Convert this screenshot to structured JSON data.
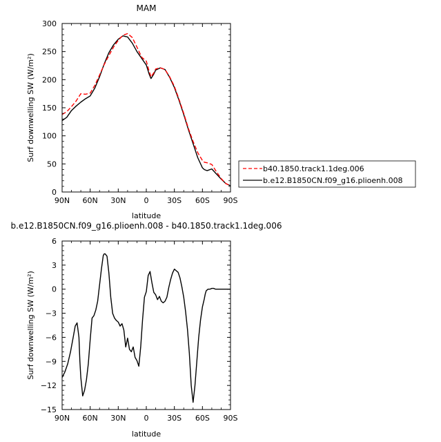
{
  "chart_data": [
    {
      "type": "line",
      "title": "MAM",
      "xlabel": "latitude",
      "ylabel": "Surf downwelling SW (W/m²)",
      "x_tick_labels": [
        "90N",
        "60N",
        "30N",
        "0",
        "30S",
        "60S",
        "90S"
      ],
      "x_ticks": [
        90,
        60,
        30,
        0,
        -30,
        -60,
        -90
      ],
      "xlim": [
        90,
        -90
      ],
      "ylim": [
        0,
        300
      ],
      "y_ticks": [
        0,
        50,
        100,
        150,
        200,
        250,
        300
      ],
      "grid": false,
      "legend_position": "right, outside plot",
      "series": [
        {
          "name": "b40.1850.track1.1deg.006",
          "color": "#ff0000",
          "dash": "dashed",
          "x": [
            90,
            85,
            80,
            75,
            70,
            65,
            60,
            55,
            50,
            45,
            40,
            35,
            30,
            25,
            20,
            15,
            10,
            5,
            0,
            -3,
            -5,
            -8,
            -10,
            -15,
            -20,
            -25,
            -30,
            -35,
            -40,
            -45,
            -50,
            -55,
            -60,
            -62,
            -65,
            -70,
            -75,
            -80,
            -85,
            -90
          ],
          "y": [
            138,
            143,
            152,
            162,
            175,
            174,
            176,
            190,
            208,
            227,
            243,
            258,
            270,
            279,
            282,
            275,
            258,
            240,
            233,
            215,
            205,
            212,
            219,
            221,
            218,
            205,
            188,
            165,
            140,
            113,
            90,
            70,
            56,
            53,
            52,
            49,
            36,
            24,
            15,
            11
          ]
        },
        {
          "name": "b.e12.B1850CN.f09_g16.plioenh.008",
          "color": "#000000",
          "dash": "solid",
          "x": [
            90,
            85,
            80,
            75,
            70,
            65,
            60,
            55,
            50,
            45,
            40,
            35,
            30,
            25,
            20,
            15,
            10,
            5,
            0,
            -3,
            -5,
            -8,
            -10,
            -15,
            -20,
            -25,
            -30,
            -35,
            -40,
            -45,
            -50,
            -55,
            -60,
            -62,
            -65,
            -70,
            -75,
            -80,
            -85,
            -90
          ],
          "y": [
            127,
            133,
            145,
            153,
            160,
            166,
            171,
            185,
            205,
            228,
            248,
            262,
            272,
            278,
            276,
            265,
            250,
            238,
            226,
            210,
            202,
            210,
            217,
            221,
            218,
            204,
            186,
            163,
            138,
            111,
            86,
            61,
            43,
            40,
            38,
            41,
            32,
            23,
            15,
            11
          ]
        }
      ]
    },
    {
      "type": "line",
      "title": "b.e12.B1850CN.f09_g16.plioenh.008 - b40.1850.track1.1deg.006",
      "xlabel": "latitude",
      "ylabel": "Surf downwelling SW (W/m²)",
      "x_tick_labels": [
        "90N",
        "60N",
        "30N",
        "0",
        "30S",
        "60S",
        "90S"
      ],
      "x_ticks": [
        90,
        60,
        30,
        0,
        -30,
        -60,
        -90
      ],
      "xlim": [
        90,
        -90
      ],
      "ylim": [
        -15,
        6
      ],
      "y_ticks": [
        -15,
        -12,
        -9,
        -6,
        -3,
        0,
        3,
        6
      ],
      "grid": false,
      "series": [
        {
          "color": "#000000",
          "x": [
            90,
            87,
            84,
            81,
            78,
            76,
            74,
            72,
            71,
            70,
            68,
            66,
            64,
            62,
            60,
            58,
            56,
            54,
            52,
            50,
            48,
            46,
            45,
            44,
            42,
            40,
            38,
            36,
            34,
            32,
            30,
            28,
            26,
            24,
            22,
            20,
            18,
            16,
            14,
            12,
            10,
            8,
            6,
            4,
            2,
            0,
            -2,
            -4,
            -6,
            -8,
            -10,
            -12,
            -14,
            -16,
            -18,
            -20,
            -22,
            -24,
            -26,
            -28,
            -30,
            -32,
            -34,
            -36,
            -38,
            -40,
            -42,
            -44,
            -46,
            -48,
            -50,
            -52,
            -54,
            -56,
            -58,
            -60,
            -62,
            -63,
            -64,
            -66,
            -68,
            -70,
            -72,
            -74,
            -76,
            -78,
            -80,
            -82,
            -84,
            -86,
            -88,
            -90
          ],
          "y": [
            -11.0,
            -10.3,
            -9.3,
            -7.8,
            -5.9,
            -4.6,
            -4.2,
            -6.0,
            -9.0,
            -11.0,
            -13.3,
            -12.6,
            -11.3,
            -9.3,
            -6.3,
            -3.6,
            -3.3,
            -2.6,
            -1.5,
            0.5,
            2.5,
            4.2,
            4.4,
            4.4,
            4.1,
            2.0,
            -1.0,
            -3.0,
            -3.6,
            -3.9,
            -4.1,
            -4.6,
            -4.3,
            -5.1,
            -7.2,
            -6.1,
            -7.5,
            -7.8,
            -7.2,
            -8.5,
            -8.9,
            -9.6,
            -7.2,
            -3.8,
            -1.0,
            -0.3,
            1.7,
            2.2,
            0.8,
            -0.4,
            -0.7,
            -1.3,
            -0.9,
            -1.5,
            -1.7,
            -1.5,
            -1.0,
            0.2,
            1.2,
            2.0,
            2.5,
            2.3,
            2.1,
            1.4,
            0.3,
            -1.0,
            -2.8,
            -5.0,
            -8.0,
            -12.0,
            -14.1,
            -12.0,
            -9.0,
            -6.0,
            -3.8,
            -2.2,
            -1.2,
            -0.6,
            -0.2,
            0.0,
            0.0,
            0.1,
            0.1,
            0.0,
            0.0,
            0.0,
            0.0,
            0.0,
            0.0,
            0.0,
            0.0,
            0.0
          ]
        }
      ]
    }
  ]
}
